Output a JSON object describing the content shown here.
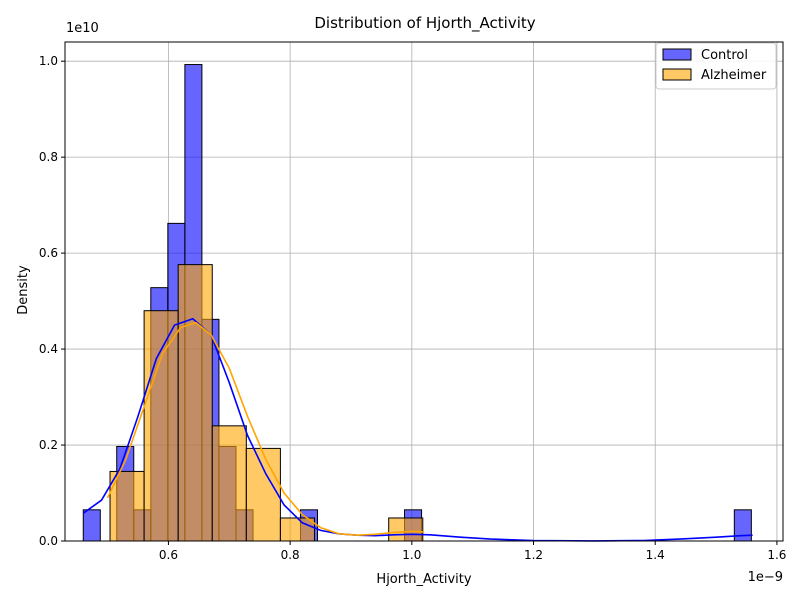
{
  "chart_data": {
    "type": "histogram",
    "title": "Distribution of Hjorth_Activity",
    "xlabel": "Hjorth_Activity",
    "ylabel": "Density",
    "x_offset_label": "1e−9",
    "y_offset_label": "1e10",
    "xlim": [
      0.43,
      1.61
    ],
    "ylim": [
      0,
      1.04
    ],
    "xticks": [
      0.6,
      0.8,
      1.0,
      1.2,
      1.4,
      1.6
    ],
    "xtick_labels": [
      "0.6",
      "0.8",
      "1.0",
      "1.2",
      "1.4",
      "1.6"
    ],
    "yticks": [
      0.0,
      0.2,
      0.4,
      0.6,
      0.8,
      1.0
    ],
    "ytick_labels": [
      "0.0",
      "0.2",
      "0.4",
      "0.6",
      "0.8",
      "1.0"
    ],
    "grid": true,
    "legend_position": "top-right",
    "series": [
      {
        "name": "Control",
        "color": "#0000ff",
        "bins": [
          {
            "x0": 0.46,
            "x1": 0.488,
            "y": 0.065
          },
          {
            "x0": 0.515,
            "x1": 0.543,
            "y": 0.197
          },
          {
            "x0": 0.543,
            "x1": 0.571,
            "y": 0.065
          },
          {
            "x0": 0.571,
            "x1": 0.599,
            "y": 0.528
          },
          {
            "x0": 0.599,
            "x1": 0.627,
            "y": 0.662
          },
          {
            "x0": 0.627,
            "x1": 0.655,
            "y": 0.993
          },
          {
            "x0": 0.655,
            "x1": 0.683,
            "y": 0.462
          },
          {
            "x0": 0.683,
            "x1": 0.711,
            "y": 0.197
          },
          {
            "x0": 0.711,
            "x1": 0.739,
            "y": 0.065
          },
          {
            "x0": 0.817,
            "x1": 0.845,
            "y": 0.065
          },
          {
            "x0": 0.988,
            "x1": 1.016,
            "y": 0.065
          },
          {
            "x0": 1.53,
            "x1": 1.558,
            "y": 0.065
          }
        ],
        "kde": [
          [
            0.46,
            0.058
          ],
          [
            0.49,
            0.085
          ],
          [
            0.52,
            0.15
          ],
          [
            0.55,
            0.26
          ],
          [
            0.58,
            0.38
          ],
          [
            0.61,
            0.45
          ],
          [
            0.64,
            0.463
          ],
          [
            0.67,
            0.43
          ],
          [
            0.7,
            0.33
          ],
          [
            0.73,
            0.22
          ],
          [
            0.76,
            0.14
          ],
          [
            0.79,
            0.075
          ],
          [
            0.82,
            0.038
          ],
          [
            0.85,
            0.022
          ],
          [
            0.88,
            0.015
          ],
          [
            0.91,
            0.012
          ],
          [
            0.94,
            0.011
          ],
          [
            0.97,
            0.013
          ],
          [
            1.0,
            0.014
          ],
          [
            1.03,
            0.013
          ],
          [
            1.08,
            0.008
          ],
          [
            1.13,
            0.004
          ],
          [
            1.2,
            0.001
          ],
          [
            1.3,
            0.0003
          ],
          [
            1.38,
            0.001
          ],
          [
            1.44,
            0.004
          ],
          [
            1.5,
            0.008
          ],
          [
            1.54,
            0.011
          ],
          [
            1.56,
            0.012
          ]
        ]
      },
      {
        "name": "Alzheimer",
        "color": "#ffa500",
        "bins": [
          {
            "x0": 0.504,
            "x1": 0.56,
            "y": 0.145
          },
          {
            "x0": 0.56,
            "x1": 0.616,
            "y": 0.48
          },
          {
            "x0": 0.616,
            "x1": 0.672,
            "y": 0.576
          },
          {
            "x0": 0.672,
            "x1": 0.728,
            "y": 0.24
          },
          {
            "x0": 0.728,
            "x1": 0.784,
            "y": 0.193
          },
          {
            "x0": 0.784,
            "x1": 0.84,
            "y": 0.048
          },
          {
            "x0": 0.962,
            "x1": 1.018,
            "y": 0.048
          }
        ],
        "kde": [
          [
            0.5,
            0.09
          ],
          [
            0.53,
            0.17
          ],
          [
            0.56,
            0.28
          ],
          [
            0.59,
            0.39
          ],
          [
            0.62,
            0.445
          ],
          [
            0.645,
            0.455
          ],
          [
            0.67,
            0.43
          ],
          [
            0.7,
            0.36
          ],
          [
            0.73,
            0.26
          ],
          [
            0.76,
            0.17
          ],
          [
            0.79,
            0.1
          ],
          [
            0.82,
            0.055
          ],
          [
            0.85,
            0.028
          ],
          [
            0.88,
            0.015
          ],
          [
            0.91,
            0.012
          ],
          [
            0.94,
            0.014
          ],
          [
            0.97,
            0.018
          ],
          [
            1.0,
            0.02
          ],
          [
            1.02,
            0.019
          ]
        ]
      }
    ]
  }
}
